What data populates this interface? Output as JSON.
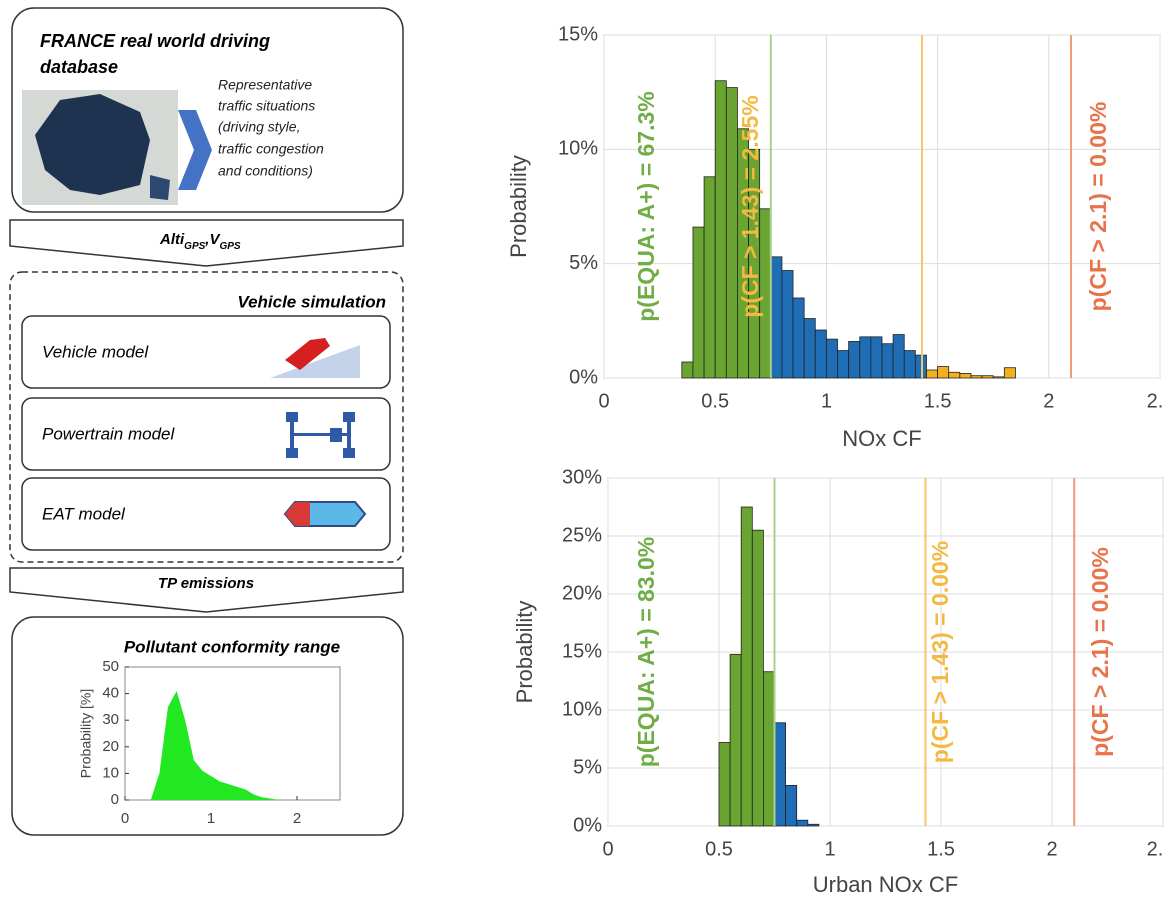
{
  "diagram": {
    "database_title": [
      "FRANCE real world driving",
      "database"
    ],
    "database_note": [
      "Representative",
      "traffic situations",
      "(driving style,",
      "traffic congestion",
      "and conditions)"
    ],
    "arrow1_label": [
      "Alti",
      "GPS",
      ",V",
      "GPS"
    ],
    "simulation_title": "Vehicle simulation",
    "models": [
      "Vehicle model",
      "Powertrain model",
      "EAT model"
    ],
    "arrow2_label": "TP emissions",
    "result_title": "Pollutant conformity range"
  },
  "chart_data": [
    {
      "type": "histogram",
      "xlabel": "NOx CF",
      "ylabel": "Probability",
      "xlim": [
        0,
        2.5
      ],
      "xticks": [
        0,
        0.5,
        1,
        1.5,
        2,
        {
          "value": 2.5,
          "label": "2."
        }
      ],
      "ylim": [
        0,
        15
      ],
      "yticks": [
        {
          "value": 0,
          "label": "0%"
        },
        {
          "value": 5,
          "label": "5%"
        },
        {
          "value": 10,
          "label": "10%"
        },
        {
          "value": 15,
          "label": "15%"
        }
      ],
      "grid": true,
      "series": [
        {
          "color": "#6aa531",
          "bins": [
            0.35,
            0.4,
            0.45,
            0.5,
            0.55,
            0.6,
            0.65,
            0.7,
            0.75
          ],
          "values": [
            0.7,
            6.6,
            8.8,
            13.0,
            12.7,
            10.9,
            10.0,
            7.4
          ]
        },
        {
          "color": "#1f6db5",
          "bins": [
            0.75,
            0.8,
            0.85,
            0.9,
            0.95,
            1.0,
            1.05,
            1.1,
            1.15,
            1.2,
            1.25,
            1.3,
            1.35,
            1.4,
            1.45
          ],
          "values": [
            5.3,
            4.7,
            3.5,
            2.6,
            2.1,
            1.7,
            1.2,
            1.6,
            1.8,
            1.8,
            1.5,
            1.9,
            1.2,
            1.0
          ]
        },
        {
          "color": "#f2b01e",
          "bins": [
            1.45,
            1.5,
            1.55,
            1.6,
            1.65,
            1.7,
            1.75,
            1.8,
            1.85
          ],
          "values": [
            0.35,
            0.5,
            0.25,
            0.2,
            0.1,
            0.1,
            0.05,
            0.45
          ]
        }
      ],
      "vlines": [
        {
          "x": 0.75,
          "color": "#a9d18e"
        },
        {
          "x": 1.43,
          "color": "#f7c56a"
        },
        {
          "x": 2.1,
          "color": "#ee9a78"
        }
      ],
      "annotations": [
        {
          "text": "p(EQUA: A+) = 67.3%",
          "color": "#70ad47"
        },
        {
          "text": "p(CF > 1.43) = 2.55%",
          "color": "#f4b942"
        },
        {
          "text": "p(CF > 2.1) = 0.00%",
          "color": "#e8734a"
        }
      ]
    },
    {
      "type": "histogram",
      "xlabel": "Urban NOx CF",
      "ylabel": "Probability",
      "xlim": [
        0,
        2.5
      ],
      "xticks": [
        0,
        0.5,
        1,
        1.5,
        2,
        {
          "value": 2.5,
          "label": "2."
        }
      ],
      "ylim": [
        0,
        30
      ],
      "yticks": [
        {
          "value": 0,
          "label": "0%"
        },
        {
          "value": 5,
          "label": "5%"
        },
        {
          "value": 10,
          "label": "10%"
        },
        {
          "value": 15,
          "label": "15%"
        },
        {
          "value": 20,
          "label": "20%"
        },
        {
          "value": 25,
          "label": "25%"
        },
        {
          "value": 30,
          "label": "30%"
        }
      ],
      "grid": true,
      "series": [
        {
          "color": "#6aa531",
          "bins": [
            0.5,
            0.55,
            0.6,
            0.65,
            0.7,
            0.75
          ],
          "values": [
            7.2,
            14.8,
            27.5,
            25.5,
            13.3
          ]
        },
        {
          "color": "#1f6db5",
          "bins": [
            0.75,
            0.8,
            0.85,
            0.9,
            0.95
          ],
          "values": [
            8.9,
            3.5,
            0.5,
            0.15
          ]
        }
      ],
      "vlines": [
        {
          "x": 0.75,
          "color": "#a9d18e"
        },
        {
          "x": 1.43,
          "color": "#f7c56a"
        },
        {
          "x": 2.1,
          "color": "#ee9a78"
        }
      ],
      "annotations": [
        {
          "text": "p(EQUA: A+) = 83.0%",
          "color": "#70ad47"
        },
        {
          "text": "p(CF > 1.43) = 0.00%",
          "color": "#f4b942"
        },
        {
          "text": "p(CF > 2.1) = 0.00%",
          "color": "#e8734a"
        }
      ]
    },
    {
      "type": "area",
      "ylabel": "Probability [%]",
      "xlim": [
        0,
        2.5
      ],
      "xticks": [
        0,
        1,
        2
      ],
      "ylim": [
        0,
        50
      ],
      "yticks": [
        0,
        10,
        20,
        30,
        40,
        50
      ],
      "grid": false,
      "series": [
        {
          "color": "#22e822",
          "x": [
            0.3,
            0.4,
            0.5,
            0.6,
            0.7,
            0.8,
            0.9,
            1.0,
            1.1,
            1.2,
            1.3,
            1.4,
            1.5,
            1.6,
            1.8
          ],
          "values": [
            0,
            10,
            35,
            41,
            30,
            15,
            11,
            9,
            7,
            6,
            5,
            4,
            2,
            1,
            0
          ]
        }
      ]
    }
  ]
}
